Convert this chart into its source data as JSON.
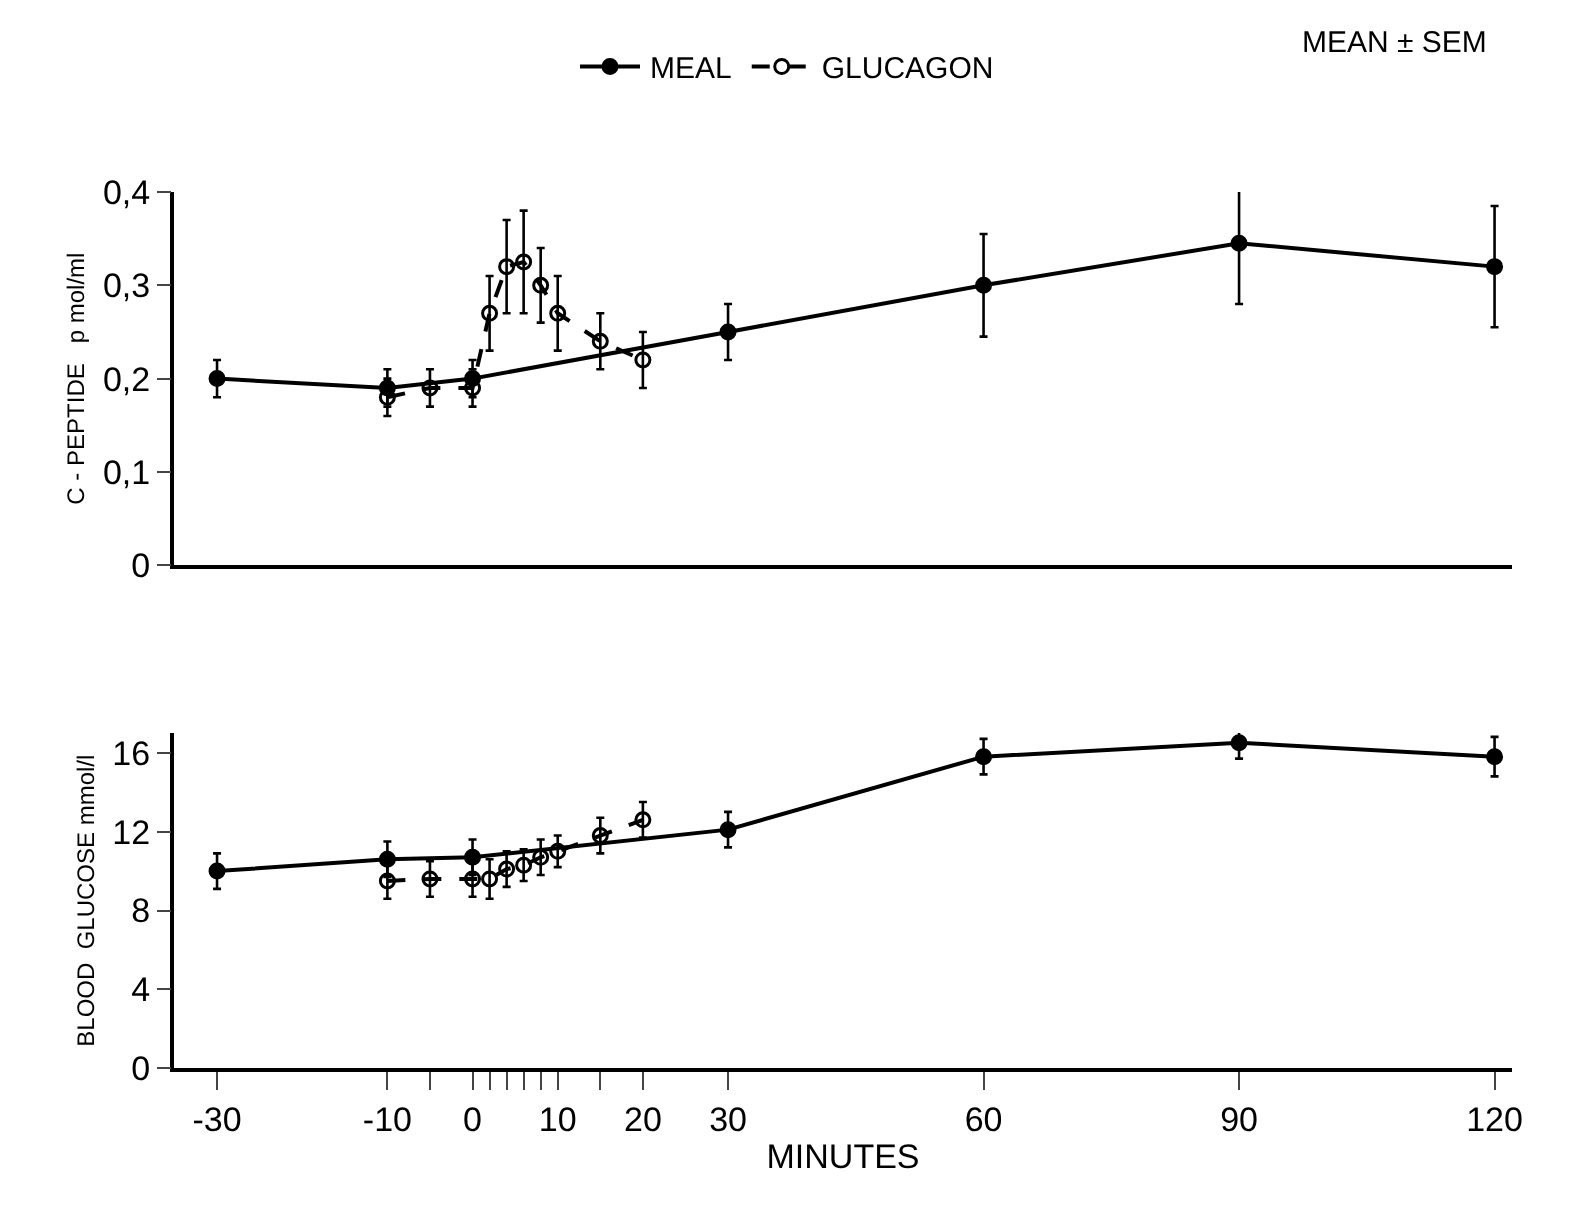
{
  "chart_data": [
    {
      "type": "line",
      "ylabel": "C - PEPTIDE   p mol/ml",
      "xlim": [
        -35,
        122
      ],
      "ylim": [
        0,
        0.4
      ],
      "yticks": [
        {
          "value": 0,
          "label": "0"
        },
        {
          "value": 0.1,
          "label": "0,1"
        },
        {
          "value": 0.2,
          "label": "0,2"
        },
        {
          "value": 0.3,
          "label": "0,3"
        },
        {
          "value": 0.4,
          "label": "0,4"
        }
      ],
      "tick_labels": "y",
      "legend": "top",
      "marker": "circle",
      "annotations": [
        "MEAN ± SEM"
      ],
      "series": [
        {
          "name": "MEAL",
          "color": "#000000",
          "line_style": "solid",
          "x": [
            -30,
            -10,
            0,
            30,
            60,
            90,
            120
          ],
          "values": [
            0.2,
            0.19,
            0.2,
            0.25,
            0.3,
            0.345,
            0.32
          ],
          "errors": [
            0.02,
            0.02,
            0.02,
            0.03,
            0.055,
            0.065,
            0.065
          ]
        },
        {
          "name": "GLUCAGON",
          "color": "#000000",
          "line_style": "dashed",
          "x": [
            -10,
            -5,
            0,
            2,
            4,
            6,
            8,
            10,
            15,
            20
          ],
          "values": [
            0.18,
            0.19,
            0.19,
            0.27,
            0.32,
            0.325,
            0.3,
            0.27,
            0.24,
            0.22
          ],
          "errors": [
            0.02,
            0.02,
            0.02,
            0.04,
            0.05,
            0.055,
            0.04,
            0.04,
            0.03,
            0.03
          ]
        }
      ]
    },
    {
      "type": "line",
      "ylabel": "BLOOD  GLUCOSE mmol/l",
      "xlabel": "MINUTES",
      "xlim": [
        -35,
        122
      ],
      "xticks": [
        -30,
        -10,
        {
          "value": -5,
          "label": null
        },
        0,
        {
          "value": 2,
          "label": null
        },
        {
          "value": 4,
          "label": null
        },
        {
          "value": 6,
          "label": null
        },
        {
          "value": 8,
          "label": null
        },
        10,
        {
          "value": 15,
          "label": null
        },
        20,
        30,
        60,
        90,
        120
      ],
      "ylim": [
        0,
        17
      ],
      "yticks": [
        0,
        4,
        8,
        12,
        16
      ],
      "marker": "circle",
      "series": [
        {
          "color": "#000000",
          "line_style": "solid",
          "x": [
            -30,
            -10,
            0,
            30,
            60,
            90,
            120
          ],
          "values": [
            10.0,
            10.6,
            10.7,
            12.1,
            15.8,
            16.5,
            15.8
          ],
          "errors": [
            0.9,
            0.9,
            0.9,
            0.9,
            0.9,
            0.8,
            1.0
          ]
        },
        {
          "color": "#000000",
          "line_style": "dashed",
          "x": [
            -10,
            -5,
            0,
            2,
            4,
            6,
            8,
            10,
            15,
            20
          ],
          "values": [
            9.5,
            9.6,
            9.6,
            9.6,
            10.1,
            10.3,
            10.7,
            11.0,
            11.8,
            12.6
          ],
          "errors": [
            0.9,
            0.9,
            0.9,
            1.0,
            0.9,
            0.8,
            0.9,
            0.8,
            0.9,
            0.9
          ]
        }
      ]
    }
  ]
}
